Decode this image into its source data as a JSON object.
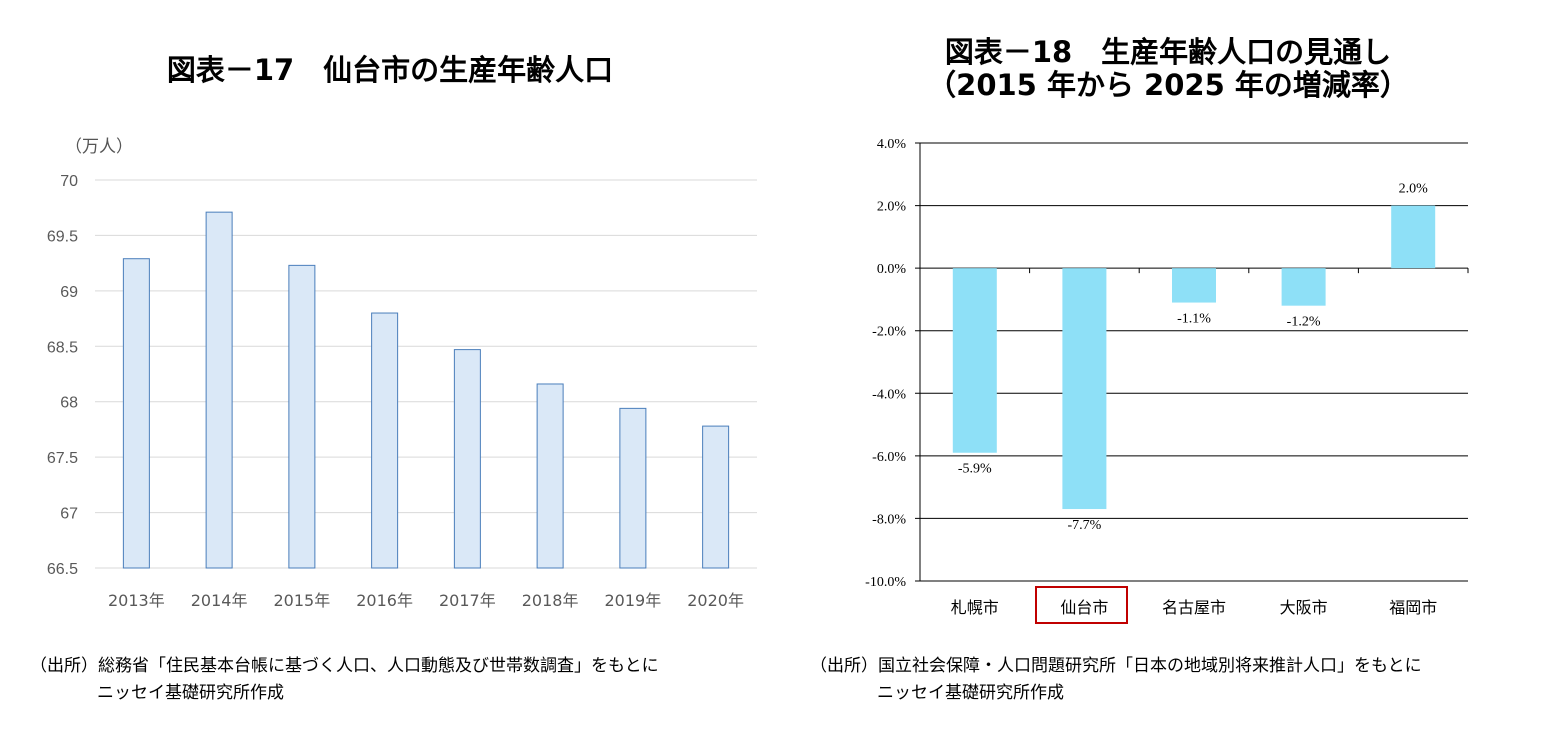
{
  "left": {
    "title": "図表－17　仙台市の生産年齢人口",
    "source_label": "（出所）",
    "source_text": "総務省「住民基本台帳に基づく人口、人口動態及び世帯数調査」をもとに",
    "source_text2": "ニッセイ基礎研究所作成",
    "colors": {
      "bar_fill": "#dae8f7",
      "bar_stroke": "#4a7ebb",
      "grid": "#d9d9d9",
      "tick_text": "#595959"
    }
  },
  "right": {
    "title_line1": "図表－18　生産年齢人口の見通し",
    "title_line2": "（2015 年から 2025 年の増減率）",
    "source_label": "（出所）",
    "source_text": "国立社会保障・人口問題研究所「日本の地域別将来推計人口」をもとに",
    "source_text2": "ニッセイ基礎研究所作成",
    "highlighted_category": "仙台市",
    "colors": {
      "bar_fill": "#8ee0f7",
      "grid": "#000000",
      "highlight_box": "#c00000"
    }
  },
  "chart_data": [
    {
      "type": "bar",
      "title": "図表－17　仙台市の生産年齢人口",
      "unit_label": "（万人）",
      "categories": [
        "2013年",
        "2014年",
        "2015年",
        "2016年",
        "2017年",
        "2018年",
        "2019年",
        "2020年"
      ],
      "values": [
        69.29,
        69.71,
        69.23,
        68.8,
        68.47,
        68.16,
        67.94,
        67.78
      ],
      "ylim": [
        66.5,
        70
      ],
      "yticks": [
        "66.5",
        "67",
        "67.5",
        "68",
        "68.5",
        "69",
        "69.5",
        "70"
      ],
      "grid": true,
      "legend": "none"
    },
    {
      "type": "bar",
      "title": "図表－18　生産年齢人口の見通し（2015 年から 2025 年の増減率）",
      "categories": [
        "札幌市",
        "仙台市",
        "名古屋市",
        "大阪市",
        "福岡市"
      ],
      "values": [
        -5.9,
        -7.7,
        -1.1,
        -1.2,
        2.0
      ],
      "data_labels": [
        "-5.9%",
        "-7.7%",
        "-1.1%",
        "-1.2%",
        "2.0%"
      ],
      "ylim": [
        -10,
        4
      ],
      "yticks": [
        "-10.0%",
        "-8.0%",
        "-6.0%",
        "-4.0%",
        "-2.0%",
        "0.0%",
        "2.0%",
        "4.0%"
      ],
      "grid": true,
      "legend": "none"
    }
  ]
}
